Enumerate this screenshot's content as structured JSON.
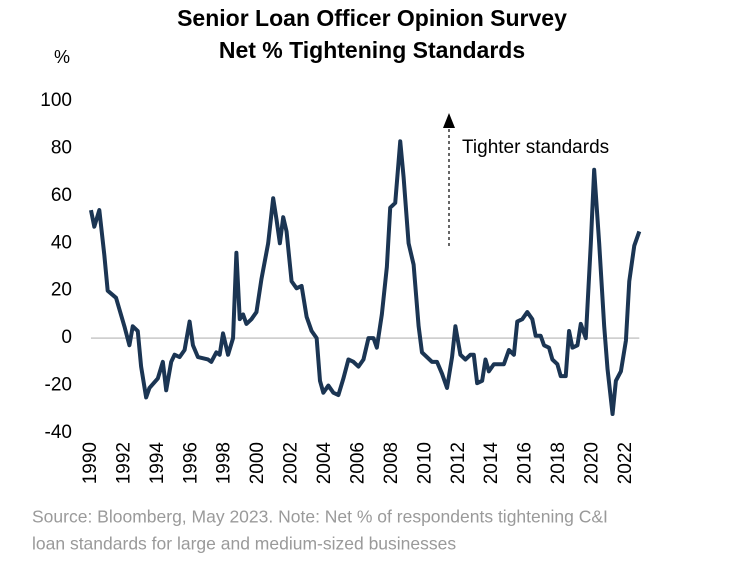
{
  "chart_data": {
    "type": "line",
    "title": "Senior Loan Officer Opinion Survey",
    "subtitle": "Net % Tightening Standards",
    "y_label": "%",
    "annotation": "Tighter standards",
    "source": "Source: Bloomberg, May 2023. Note: Net % of respondents tightening C&I",
    "source_line2": "loan standards for large and medium-sized businesses",
    "x": [
      1990.0,
      1990.2,
      1990.5,
      1990.8,
      1991.0,
      1991.5,
      1992.0,
      1992.3,
      1992.5,
      1992.8,
      1993.0,
      1993.3,
      1993.5,
      1994.0,
      1994.3,
      1994.5,
      1994.8,
      1995.0,
      1995.3,
      1995.6,
      1995.9,
      1996.1,
      1996.4,
      1997.0,
      1997.2,
      1997.5,
      1997.7,
      1997.9,
      1998.2,
      1998.5,
      1998.7,
      1998.9,
      1999.1,
      1999.3,
      1999.6,
      1999.9,
      2000.2,
      2000.6,
      2000.9,
      2001.1,
      2001.3,
      2001.5,
      2001.7,
      2002.0,
      2002.3,
      2002.6,
      2002.9,
      2003.2,
      2003.5,
      2003.7,
      2003.9,
      2004.2,
      2004.5,
      2004.8,
      2005.1,
      2005.4,
      2005.7,
      2006.0,
      2006.3,
      2006.6,
      2006.9,
      2007.1,
      2007.4,
      2007.7,
      2007.9,
      2008.2,
      2008.5,
      2008.7,
      2009.0,
      2009.3,
      2009.6,
      2009.8,
      2010.1,
      2010.4,
      2010.7,
      2011.0,
      2011.3,
      2011.6,
      2011.8,
      2012.1,
      2012.4,
      2012.7,
      2012.9,
      2013.1,
      2013.4,
      2013.6,
      2013.8,
      2014.1,
      2014.4,
      2014.7,
      2015.0,
      2015.3,
      2015.5,
      2015.8,
      2016.1,
      2016.4,
      2016.6,
      2016.9,
      2017.1,
      2017.4,
      2017.6,
      2017.9,
      2018.1,
      2018.4,
      2018.6,
      2018.8,
      2019.1,
      2019.3,
      2019.6,
      2019.9,
      2020.1,
      2020.4,
      2020.7,
      2020.9,
      2021.2,
      2021.4,
      2021.7,
      2022.0,
      2022.2,
      2022.5,
      2022.8
    ],
    "series": [
      {
        "name": "Net % tightening",
        "color": "#1b3553",
        "values": [
          54,
          47,
          54,
          35,
          20,
          17,
          5,
          -3,
          5,
          3,
          -12,
          -25,
          -21,
          -17,
          -10,
          -22,
          -10,
          -7,
          -8,
          -5,
          7,
          -3,
          -8,
          -9,
          -10,
          -6,
          -7,
          2,
          -7,
          0,
          36,
          8,
          10,
          6,
          8,
          11,
          25,
          40,
          59,
          50,
          40,
          51,
          45,
          24,
          21,
          22,
          9,
          3,
          0,
          -18,
          -23,
          -20,
          -23,
          -24,
          -17,
          -9,
          -10,
          -12,
          -9,
          0,
          0,
          -4,
          10,
          30,
          55,
          57,
          83,
          68,
          40,
          31,
          5,
          -6,
          -8,
          -10,
          -10,
          -15,
          -21,
          -8,
          5,
          -7,
          -9,
          -7,
          -7,
          -19,
          -18,
          -9,
          -14,
          -11,
          -11,
          -11,
          -5,
          -7,
          7,
          8,
          11,
          8,
          1,
          1,
          -3,
          -4,
          -9,
          -11,
          -16,
          -16,
          3,
          -4,
          -3,
          6,
          0,
          40,
          71,
          40,
          5,
          -13,
          -32,
          -18,
          -14,
          -1,
          24,
          39,
          45
        ]
      }
    ],
    "xlim": [
      1989.5,
      2023.5
    ],
    "xticks": [
      1990,
      1992,
      1994,
      1996,
      1998,
      2000,
      2002,
      2004,
      2006,
      2008,
      2010,
      2012,
      2014,
      2016,
      2018,
      2020,
      2022
    ],
    "ylim": [
      -40,
      100
    ],
    "yticks": [
      100,
      80,
      60,
      40,
      20,
      0,
      -20,
      -40
    ]
  }
}
